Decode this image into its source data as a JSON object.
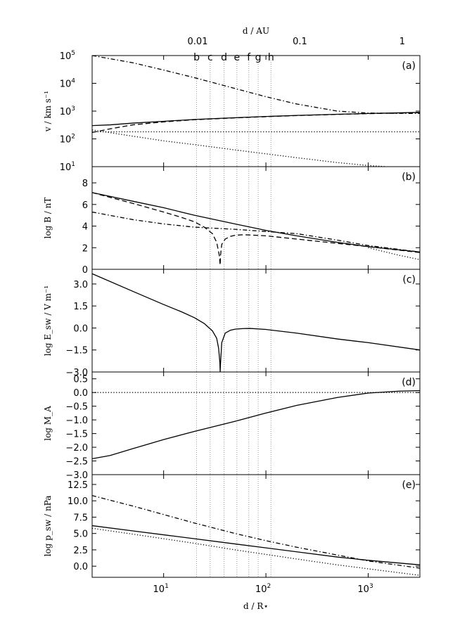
{
  "figure": {
    "xlabel": "d  /  R⋆",
    "top_axis": {
      "label": "d  /  AU",
      "ticks": [
        {
          "label": "0.01",
          "x": 21.5
        },
        {
          "label": "0.1",
          "x": 215
        },
        {
          "label": "1",
          "x": 2150
        }
      ]
    },
    "x_ticks": [
      {
        "label": "10",
        "sup": "1",
        "x": 10
      },
      {
        "label": "10",
        "sup": "2",
        "x": 100
      },
      {
        "label": "10",
        "sup": "3",
        "x": 1000
      }
    ],
    "xlim": [
      2,
      3200
    ],
    "vlines": [
      {
        "label": "b",
        "x": 21
      },
      {
        "label": "c",
        "x": 28.5
      },
      {
        "label": "d",
        "x": 39
      },
      {
        "label": "e",
        "x": 52
      },
      {
        "label": "f",
        "x": 68
      },
      {
        "label": "g",
        "x": 84
      },
      {
        "label": "h",
        "x": 112
      }
    ]
  },
  "chart_data": [
    {
      "type": "line",
      "panel": "(a)",
      "ylabel": "v  /  km s⁻¹",
      "yscale": "log",
      "ylim": [
        10,
        100000
      ],
      "yticks": [
        {
          "label": "10",
          "sup": "1",
          "v": 1
        },
        {
          "label": "10",
          "sup": "2",
          "v": 2
        },
        {
          "label": "10",
          "sup": "3",
          "v": 3
        },
        {
          "label": "10",
          "sup": "4",
          "v": 4
        },
        {
          "label": "10",
          "sup": "5",
          "v": 5
        }
      ],
      "series": [
        {
          "style": "solid",
          "x": [
            2,
            3,
            5,
            10,
            20,
            50,
            100,
            200,
            500,
            1000,
            3200
          ],
          "y": [
            300,
            320,
            370,
            430,
            500,
            580,
            640,
            700,
            770,
            820,
            900
          ]
        },
        {
          "style": "dashed",
          "x": [
            2,
            3,
            5,
            10,
            20,
            50,
            100,
            200,
            500,
            1000,
            3200
          ],
          "y": [
            170,
            230,
            320,
            410,
            490,
            570,
            630,
            690,
            760,
            810,
            880
          ]
        },
        {
          "style": "dashdot",
          "x": [
            2,
            5,
            10,
            20,
            50,
            100,
            200,
            500,
            1000,
            2000,
            3200
          ],
          "y": [
            100000,
            55000,
            30000,
            16000,
            6500,
            3300,
            1800,
            1000,
            850,
            830,
            820
          ]
        },
        {
          "style": "dotted",
          "x": [
            2,
            3200
          ],
          "y": [
            180,
            180
          ]
        },
        {
          "style": "dotted",
          "x": [
            2,
            5,
            10,
            20,
            50,
            100,
            200,
            500,
            1000,
            1500
          ],
          "y": [
            210,
            125,
            85,
            62,
            40,
            29,
            21,
            14,
            11,
            10
          ]
        }
      ]
    },
    {
      "type": "line",
      "panel": "(b)",
      "ylabel": "log B  /  nT",
      "ylim": [
        0,
        9.5
      ],
      "yticks": [
        {
          "label": "0",
          "v": 0
        },
        {
          "label": "2",
          "v": 2
        },
        {
          "label": "4",
          "v": 4
        },
        {
          "label": "6",
          "v": 6
        },
        {
          "label": "8",
          "v": 8
        }
      ],
      "series": [
        {
          "style": "solid",
          "x": [
            2,
            5,
            10,
            20,
            50,
            100,
            200,
            500,
            1000,
            3200
          ],
          "y": [
            7.1,
            6.3,
            5.7,
            5.0,
            4.2,
            3.6,
            3.1,
            2.5,
            2.1,
            1.6
          ]
        },
        {
          "style": "dashed",
          "x": [
            2,
            5,
            10,
            15,
            20,
            25,
            30,
            33,
            35,
            35.7,
            36,
            37,
            40,
            45,
            50,
            60,
            80,
            100,
            200,
            500,
            1000,
            3200
          ],
          "y": [
            7.1,
            6.1,
            5.3,
            4.8,
            4.4,
            3.9,
            3.3,
            2.5,
            1.3,
            0.4,
            1.3,
            2.3,
            2.8,
            3.05,
            3.15,
            3.2,
            3.15,
            3.1,
            2.8,
            2.4,
            2.1,
            1.55
          ]
        },
        {
          "style": "dashdot",
          "x": [
            2,
            5,
            10,
            20,
            50,
            100,
            200,
            500,
            1000,
            3200
          ],
          "y": [
            5.3,
            4.6,
            4.2,
            3.9,
            3.7,
            3.5,
            3.3,
            2.7,
            2.2,
            1.6
          ]
        },
        {
          "style": "dotted",
          "x": [
            1000,
            2000,
            3200
          ],
          "y": [
            2.0,
            1.3,
            0.9
          ]
        }
      ]
    },
    {
      "type": "line",
      "panel": "(c)",
      "ylabel": "log E_sw  /  V m⁻¹",
      "ylim": [
        -3.0,
        4.0
      ],
      "yticks": [
        {
          "label": "−3.0",
          "v": -3
        },
        {
          "label": "−1.5",
          "v": -1.5
        },
        {
          "label": "0.0",
          "v": 0
        },
        {
          "label": "1.5",
          "v": 1.5
        },
        {
          "label": "3.0",
          "v": 3
        }
      ],
      "series": [
        {
          "style": "solid",
          "x": [
            2,
            5,
            10,
            15,
            20,
            25,
            30,
            33,
            34.5,
            35.5,
            35.7,
            36,
            37,
            40,
            45,
            50,
            60,
            70,
            100,
            200,
            500,
            1000,
            3200
          ],
          "y": [
            3.7,
            2.5,
            1.6,
            1.1,
            0.7,
            0.3,
            -0.2,
            -0.7,
            -1.4,
            -2.4,
            -3.0,
            -2.4,
            -1.0,
            -0.35,
            -0.15,
            -0.08,
            -0.04,
            -0.03,
            -0.1,
            -0.35,
            -0.75,
            -1.0,
            -1.5
          ]
        }
      ]
    },
    {
      "type": "line",
      "panel": "(d)",
      "ylabel": "log M_A",
      "ylim": [
        -3.0,
        0.75
      ],
      "yticks": [
        {
          "label": "−3.0",
          "v": -3
        },
        {
          "label": "−2.5",
          "v": -2.5
        },
        {
          "label": "−2.0",
          "v": -2
        },
        {
          "label": "−1.5",
          "v": -1.5
        },
        {
          "label": "−1.0",
          "v": -1
        },
        {
          "label": "−0.5",
          "v": -0.5
        },
        {
          "label": "0.0",
          "v": 0
        },
        {
          "label": "0.5",
          "v": 0.5
        }
      ],
      "series": [
        {
          "style": "solid",
          "x": [
            2,
            3,
            5,
            10,
            20,
            50,
            100,
            200,
            500,
            1000,
            2000,
            3200
          ],
          "y": [
            -2.42,
            -2.3,
            -2.05,
            -1.72,
            -1.42,
            -1.05,
            -0.75,
            -0.47,
            -0.18,
            -0.02,
            0.05,
            0.07
          ]
        },
        {
          "style": "dotted",
          "x": [
            2,
            3200
          ],
          "y": [
            0,
            0
          ]
        }
      ]
    },
    {
      "type": "line",
      "panel": "(e)",
      "ylabel": "log p_sw  /  nPa",
      "ylim": [
        -1.7,
        14.0
      ],
      "yticks": [
        {
          "label": "0.0",
          "v": 0
        },
        {
          "label": "2.5",
          "v": 2.5
        },
        {
          "label": "5.0",
          "v": 5
        },
        {
          "label": "7.5",
          "v": 7.5
        },
        {
          "label": "10.0",
          "v": 10
        },
        {
          "label": "12.5",
          "v": 12.5
        }
      ],
      "series": [
        {
          "style": "solid",
          "x": [
            2,
            5,
            10,
            20,
            50,
            100,
            200,
            500,
            1000,
            3200
          ],
          "y": [
            6.2,
            5.4,
            4.8,
            4.2,
            3.4,
            2.8,
            2.2,
            1.4,
            0.9,
            0.2
          ]
        },
        {
          "style": "dashdot",
          "x": [
            2,
            5,
            10,
            20,
            50,
            100,
            200,
            500,
            1000,
            3200
          ],
          "y": [
            10.8,
            9.2,
            7.9,
            6.6,
            5.0,
            3.9,
            2.9,
            1.7,
            0.8,
            -0.3
          ]
        },
        {
          "style": "dotted",
          "x": [
            2,
            5,
            10,
            20,
            50,
            100,
            200,
            500,
            1000,
            3200
          ],
          "y": [
            5.8,
            4.9,
            4.2,
            3.5,
            2.5,
            1.8,
            1.1,
            0.2,
            -0.4,
            -1.4
          ]
        }
      ]
    }
  ]
}
